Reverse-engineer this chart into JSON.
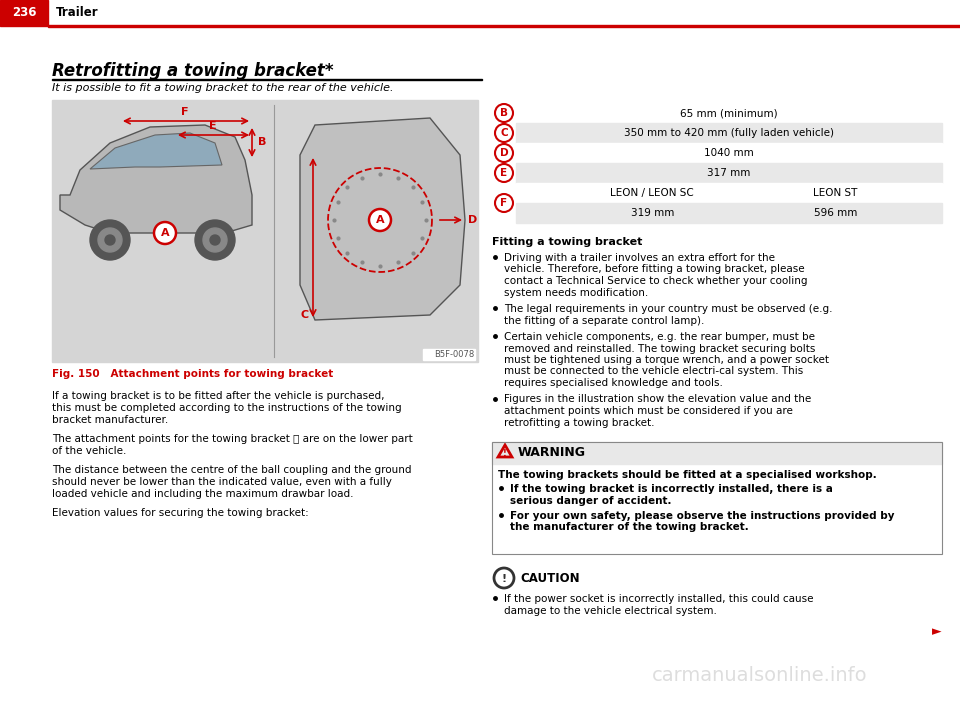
{
  "page_num": "236",
  "chapter": "Trailer",
  "bg_color": "#ffffff",
  "header_red": "#cc0000",
  "section_title": "Retrofitting a towing bracket*",
  "section_subtitle": "It is possible to fit a towing bracket to the rear of the vehicle.",
  "fig_caption": "Fig. 150   Attachment points for towing bracket",
  "fig_code": "B5F-0078",
  "left_body_paragraphs": [
    "If a towing bracket is to be fitted after the vehicle is purchased, this must be completed according to the instructions of the towing bracket manufacturer.",
    "The attachment points for the towing bracket Ⓐ are on the lower part of the vehicle.",
    "The distance between the centre of the ball coupling and the ground should never be lower than the indicated value, even with a fully loaded vehicle and including the maximum drawbar load.",
    "Elevation values for securing the towing bracket:"
  ],
  "table_rows": [
    {
      "label": "B",
      "col1": "65 mm (minimum)",
      "col2": "",
      "shaded": false
    },
    {
      "label": "C",
      "col1": "350 mm to 420 mm (fully laden vehicle)",
      "col2": "",
      "shaded": true
    },
    {
      "label": "D",
      "col1": "1040 mm",
      "col2": "",
      "shaded": false
    },
    {
      "label": "E",
      "col1": "317 mm",
      "col2": "",
      "shaded": true
    },
    {
      "label": "F",
      "col1": "LEON / LEON SC",
      "col2": "LEON ST",
      "shaded": false,
      "subrow_col1": "319 mm",
      "subrow_col2": "596 mm",
      "has_subrow": true
    }
  ],
  "right_section_title": "Fitting a towing bracket",
  "right_bullets": [
    "Driving with a trailer involves an extra effort for the vehicle. Therefore, before fitting a towing bracket, please contact a Technical Service to check whether your cooling system needs modification.",
    "The legal requirements in your country must be observed (e.g. the fitting of a separate control lamp).",
    "Certain vehicle components, e.g. the rear bumper, must be removed and reinstalled. The towing bracket securing bolts must be tightened using a torque wrench, and a power socket must be connected to the vehicle electri-cal system. This requires specialised knowledge and tools.",
    "Figures in the illustration show the elevation value and the attachment points which must be considered if you are retrofitting a towing bracket."
  ],
  "warning_title": "WARNING",
  "warning_bold": "The towing brackets should be fitted at a specialised workshop.",
  "warning_bullets": [
    "If the towing bracket is incorrectly installed, there is a serious danger of accident.",
    "For your own safety, please observe the instructions provided by the manufacturer of the towing bracket."
  ],
  "caution_title": "CAUTION",
  "caution_bullets": [
    "If the power socket is incorrectly installed, this could cause damage to the vehicle electrical system."
  ],
  "watermark": "carmanualsonline.info",
  "table_shade_color": "#e8e8e8",
  "warning_bg": "#f5f5f5",
  "warning_border": "#aaaaaa"
}
